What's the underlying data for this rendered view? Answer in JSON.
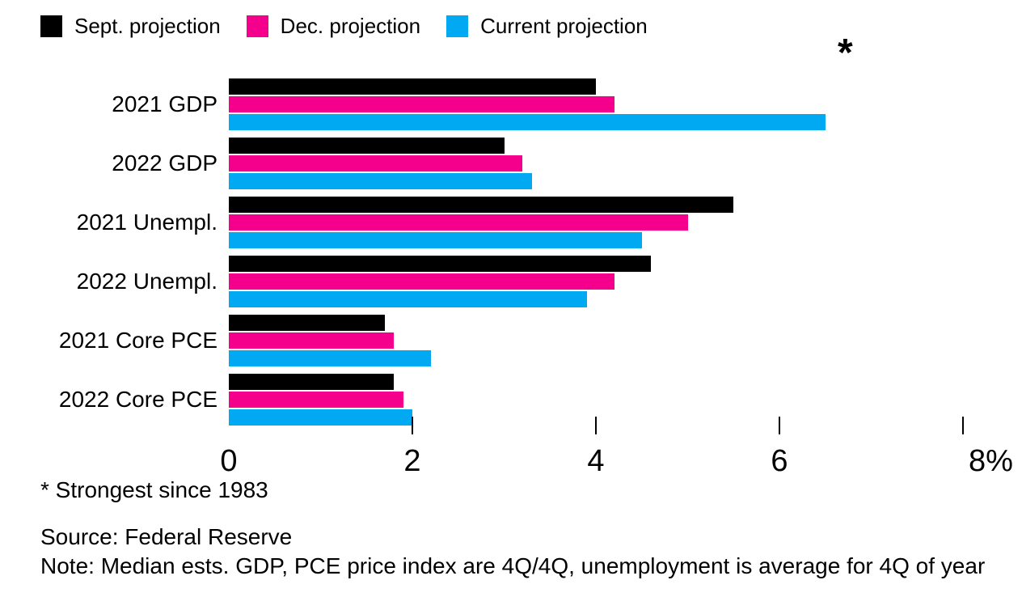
{
  "legend": {
    "items": [
      {
        "label": "Sept. projection",
        "color": "#000000"
      },
      {
        "label": "Dec. projection",
        "color": "#f5008c"
      },
      {
        "label": "Current projection",
        "color": "#00a9f2"
      }
    ]
  },
  "chart_data": {
    "type": "bar",
    "orientation": "horizontal",
    "categories": [
      "2021 GDP",
      "2022 GDP",
      "2021 Unempl.",
      "2022 Unempl.",
      "2021 Core PCE",
      "2022 Core PCE"
    ],
    "series": [
      {
        "name": "Sept. projection",
        "color": "#000000",
        "values": [
          4.0,
          3.0,
          5.5,
          4.6,
          1.7,
          1.8
        ]
      },
      {
        "name": "Dec. projection",
        "color": "#f5008c",
        "values": [
          4.2,
          3.2,
          5.0,
          4.2,
          1.8,
          1.9
        ]
      },
      {
        "name": "Current projection",
        "color": "#00a9f2",
        "values": [
          6.5,
          3.3,
          4.5,
          3.9,
          2.2,
          2.0
        ]
      }
    ],
    "xlim": [
      0,
      8
    ],
    "xticks": [
      0,
      2,
      4,
      6,
      8
    ],
    "xtick_labels": [
      "0",
      "2",
      "4",
      "6",
      "8%"
    ],
    "grid": false,
    "legend_position": "top",
    "annotation": {
      "symbol": "*",
      "meaning": "Strongest since 1983",
      "applies_to": {
        "category": "2021 GDP",
        "series": "Current projection"
      }
    }
  },
  "footer": {
    "footnote": "* Strongest since 1983",
    "source": "Source: Federal Reserve",
    "note": "Note: Median ests. GDP, PCE price index are 4Q/4Q, unemployment is average for 4Q of year"
  }
}
